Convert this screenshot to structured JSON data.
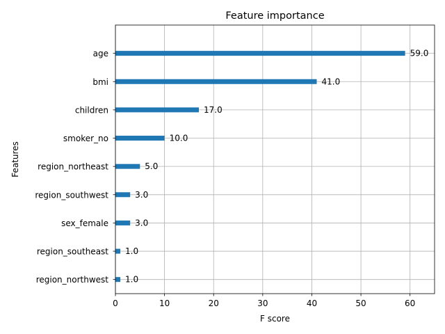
{
  "chart_data": {
    "type": "bar",
    "orientation": "horizontal",
    "title": "Feature importance",
    "xlabel": "F score",
    "ylabel": "Features",
    "categories": [
      "age",
      "bmi",
      "children",
      "smoker_no",
      "region_northeast",
      "region_southwest",
      "sex_female",
      "region_southeast",
      "region_northwest"
    ],
    "values": [
      59.0,
      41.0,
      17.0,
      10.0,
      5.0,
      3.0,
      3.0,
      1.0,
      1.0
    ],
    "value_labels": [
      "59.0",
      "41.0",
      "17.0",
      "10.0",
      "5.0",
      "3.0",
      "3.0",
      "1.0",
      "1.0"
    ],
    "xlim": [
      0,
      65
    ],
    "xticks": [
      0,
      10,
      20,
      30,
      40,
      50,
      60
    ],
    "grid": true,
    "bar_color": "#1f77b4"
  }
}
